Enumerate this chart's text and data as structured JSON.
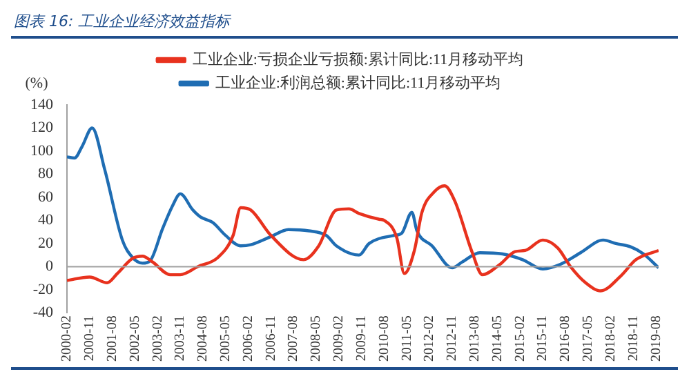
{
  "chart_data": {
    "type": "line",
    "title": "图表 16: 工业企业经济效益指标",
    "ylabel": "(%)",
    "legend": "top",
    "grid": false,
    "ref_lines": [
      {
        "axis": "y",
        "value": 0,
        "color": "#a0a0a0"
      }
    ],
    "marker": "none",
    "line_style": "solid",
    "xlim": [
      "2000-02",
      "2019-09"
    ],
    "xticks": [
      "2000-02",
      "2000-11",
      "2001-08",
      "2002-05",
      "2003-02",
      "2003-11",
      "2004-08",
      "2005-05",
      "2006-02",
      "2006-11",
      "2007-08",
      "2008-05",
      "2009-02",
      "2009-11",
      "2010-08",
      "2011-05",
      "2012-02",
      "2012-11",
      "2013-08",
      "2014-05",
      "2015-02",
      "2015-11",
      "2016-08",
      "2017-05",
      "2018-02",
      "2018-11",
      "2019-08"
    ],
    "ylim": [
      -40,
      140
    ],
    "yticks": [
      -40,
      -20,
      0,
      20,
      40,
      60,
      80,
      100,
      120,
      140
    ],
    "series": [
      {
        "name": "工业企业:亏损企业亏损额:累计同比:11月移动平均",
        "color": "#e8321e",
        "x": [
          "2000-02",
          "2000-11",
          "2001-06",
          "2001-10",
          "2002-04",
          "2002-08",
          "2002-12",
          "2003-07",
          "2003-11",
          "2004-06",
          "2005-02",
          "2005-08",
          "2005-11",
          "2006-03",
          "2006-11",
          "2007-12",
          "2008-06",
          "2009-01",
          "2009-06",
          "2009-10",
          "2010-06",
          "2010-08",
          "2011-01",
          "2011-04",
          "2011-08",
          "2011-11",
          "2012-04",
          "2012-08",
          "2012-12",
          "2013-07",
          "2013-11",
          "2014-06",
          "2014-12",
          "2015-04",
          "2015-11",
          "2016-05",
          "2016-10",
          "2017-04",
          "2017-10",
          "2018-06",
          "2018-12",
          "2019-09"
        ],
        "values": [
          -12,
          -9,
          -14,
          -6,
          7,
          9,
          4,
          -7,
          -7,
          0,
          8,
          27,
          51,
          49,
          27,
          6,
          18,
          49,
          50,
          46,
          41,
          40,
          25,
          -6,
          14,
          47,
          65,
          70,
          57,
          12,
          -7,
          2,
          13,
          14,
          23,
          16,
          0,
          -14,
          -21,
          -8,
          6,
          14
        ]
      },
      {
        "name": "工业企业:利润总额:累计同比:11月移动平均",
        "color": "#1f6db3",
        "x": [
          "2000-02",
          "2000-05",
          "2000-08",
          "2000-12",
          "2001-05",
          "2001-12",
          "2002-04",
          "2002-08",
          "2002-11",
          "2003-04",
          "2003-08",
          "2003-11",
          "2004-04",
          "2004-07",
          "2004-12",
          "2005-05",
          "2005-11",
          "2006-03",
          "2006-11",
          "2007-06",
          "2008-02",
          "2008-09",
          "2009-01",
          "2009-10",
          "2010-02",
          "2010-12",
          "2011-03",
          "2011-07",
          "2011-09",
          "2012-03",
          "2012-11",
          "2013-03",
          "2013-10",
          "2014-07",
          "2015-03",
          "2015-11",
          "2016-06",
          "2017-02",
          "2017-11",
          "2018-04",
          "2018-10",
          "2019-03",
          "2019-09"
        ],
        "values": [
          95,
          94,
          104,
          120,
          84,
          23,
          8,
          3,
          5,
          33,
          53,
          63,
          49,
          43,
          38,
          27,
          18,
          19,
          26,
          32,
          31,
          27,
          18,
          10,
          20,
          27,
          29,
          47,
          31,
          18,
          -1,
          4,
          12,
          11,
          6,
          -2,
          2,
          12,
          23,
          20,
          17,
          11,
          -1
        ]
      }
    ]
  }
}
